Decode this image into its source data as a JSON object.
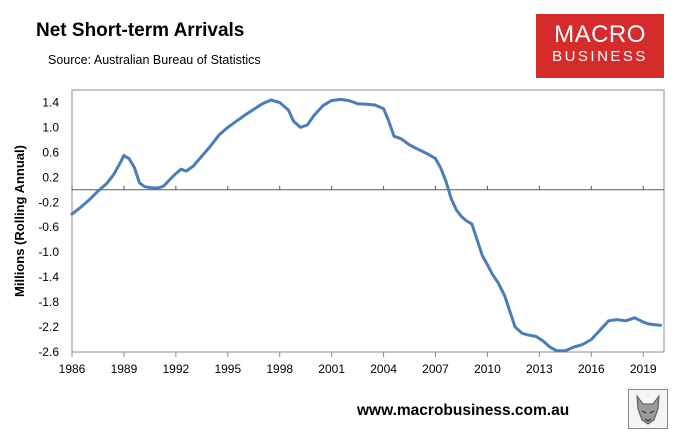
{
  "title": "Net Short-term Arrivals",
  "subtitle": "Source: Australian Bureau of Statistics",
  "logo": {
    "line1": "MACRO",
    "line2": "BUSINESS"
  },
  "website": "www.macrobusiness.com.au",
  "emblem_icon": "wolf-icon",
  "chart_data": {
    "type": "line",
    "title": "Net Short-term Arrivals",
    "xlabel": "",
    "ylabel": "Millions (Rolling Annual)",
    "ylim": [
      -2.6,
      1.6
    ],
    "xlim": [
      1986,
      2020.2
    ],
    "yticks": [
      1.4,
      1.0,
      0.6,
      0.2,
      -0.2,
      -0.6,
      -1.0,
      -1.4,
      -1.8,
      -2.2,
      -2.6
    ],
    "ytick_labels": [
      "1.4",
      "1.0",
      "0.6",
      "0.2",
      "-0.2",
      "-0.6",
      "-1.0",
      "-1.4",
      "-1.8",
      "-2.2",
      "-2.6"
    ],
    "xticks": [
      1986,
      1989,
      1992,
      1995,
      1998,
      2001,
      2004,
      2007,
      2010,
      2013,
      2016,
      2019
    ],
    "xtick_labels": [
      "1986",
      "1989",
      "1992",
      "1995",
      "1998",
      "2001",
      "2004",
      "2007",
      "2010",
      "2013",
      "2016",
      "2019"
    ],
    "zero_line": 0,
    "line_color": "#4a7ebb",
    "series": [
      {
        "name": "Net Short-term Arrivals",
        "x": [
          1986.0,
          1986.5,
          1987.0,
          1987.5,
          1988.0,
          1988.4,
          1988.8,
          1989.0,
          1989.3,
          1989.6,
          1989.9,
          1990.2,
          1990.6,
          1991.0,
          1991.3,
          1991.7,
          1992.0,
          1992.3,
          1992.6,
          1993.0,
          1993.5,
          1994.0,
          1994.5,
          1995.0,
          1995.5,
          1996.0,
          1996.5,
          1997.0,
          1997.5,
          1998.0,
          1998.5,
          1998.8,
          1999.2,
          1999.6,
          2000.0,
          2000.5,
          2001.0,
          2001.5,
          2002.0,
          2002.5,
          2003.0,
          2003.5,
          2004.0,
          2004.3,
          2004.6,
          2005.0,
          2005.5,
          2006.0,
          2006.5,
          2007.0,
          2007.3,
          2007.6,
          2007.9,
          2008.2,
          2008.5,
          2008.8,
          2009.1,
          2009.4,
          2009.7,
          2010.0,
          2010.3,
          2010.6,
          2011.0,
          2011.3,
          2011.6,
          2012.0,
          2012.4,
          2012.8,
          2013.2,
          2013.6,
          2014.0,
          2014.5,
          2015.0,
          2015.5,
          2016.0,
          2016.5,
          2017.0,
          2017.5,
          2018.0,
          2018.5,
          2019.0,
          2019.3,
          2019.6,
          2020.0
        ],
        "y": [
          -0.39,
          -0.28,
          -0.16,
          -0.02,
          0.1,
          0.24,
          0.44,
          0.55,
          0.5,
          0.36,
          0.11,
          0.05,
          0.03,
          0.03,
          0.06,
          0.18,
          0.26,
          0.33,
          0.3,
          0.38,
          0.54,
          0.7,
          0.88,
          1.0,
          1.1,
          1.2,
          1.29,
          1.38,
          1.44,
          1.4,
          1.28,
          1.1,
          1.0,
          1.04,
          1.2,
          1.35,
          1.43,
          1.45,
          1.43,
          1.38,
          1.37,
          1.36,
          1.3,
          1.1,
          0.86,
          0.82,
          0.72,
          0.65,
          0.58,
          0.5,
          0.35,
          0.14,
          -0.14,
          -0.32,
          -0.43,
          -0.5,
          -0.55,
          -0.8,
          -1.05,
          -1.2,
          -1.36,
          -1.48,
          -1.7,
          -1.95,
          -2.2,
          -2.3,
          -2.33,
          -2.35,
          -2.42,
          -2.52,
          -2.58,
          -2.58,
          -2.52,
          -2.48,
          -2.4,
          -2.25,
          -2.1,
          -2.08,
          -2.1,
          -2.05,
          -2.12,
          -2.15,
          -2.16,
          -2.17
        ]
      }
    ]
  }
}
